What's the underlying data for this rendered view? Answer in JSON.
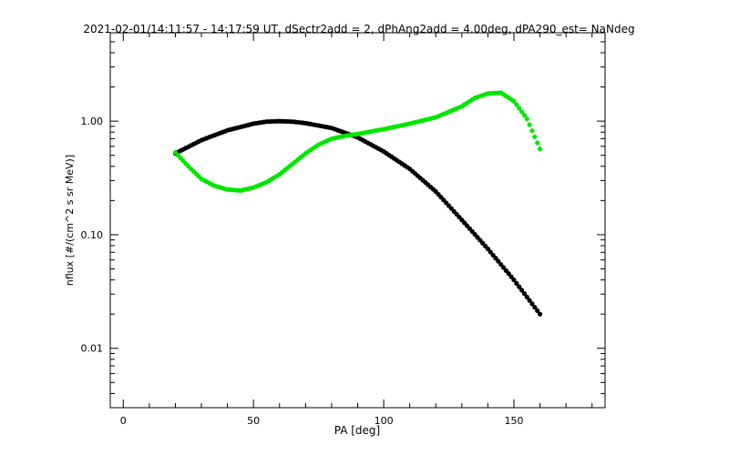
{
  "chart_data": {
    "type": "scatter",
    "title": "2021-02-01/14:11:57 - 14:17:59 UT, dSectr2add = 2, dPhAng2add = 4.00deg, dPA290_est=    NaNdeg",
    "xlabel": "PA [deg]",
    "ylabel": "nflux [#/(cm^2 s sr MeV)]",
    "xlim": [
      -5,
      185
    ],
    "ylim": [
      0.003,
      6.0
    ],
    "yscale": "log",
    "x_ticks": [
      0,
      50,
      100,
      150
    ],
    "x_tick_labels": [
      "0",
      "50",
      "100",
      "150"
    ],
    "y_ticks": [
      0.01,
      0.1,
      1.0
    ],
    "y_tick_labels": [
      "0.01",
      "0.10",
      "1.00"
    ],
    "grid": false,
    "legend": "none",
    "series": [
      {
        "color": "#000000",
        "x": [
          20,
          30,
          40,
          50,
          55,
          60,
          65,
          70,
          80,
          90,
          100,
          110,
          120,
          130,
          140,
          150,
          160
        ],
        "y": [
          0.52,
          0.68,
          0.83,
          0.95,
          0.99,
          1.0,
          0.99,
          0.96,
          0.87,
          0.72,
          0.54,
          0.38,
          0.24,
          0.135,
          0.075,
          0.04,
          0.02
        ]
      },
      {
        "color": "#00e600",
        "x": [
          20,
          25,
          30,
          35,
          40,
          45,
          50,
          55,
          60,
          65,
          70,
          75,
          80,
          85,
          90,
          100,
          110,
          120,
          130,
          135,
          140,
          145,
          150,
          155,
          160
        ],
        "y": [
          0.53,
          0.4,
          0.31,
          0.27,
          0.25,
          0.245,
          0.26,
          0.29,
          0.34,
          0.42,
          0.52,
          0.62,
          0.7,
          0.74,
          0.77,
          0.85,
          0.95,
          1.08,
          1.35,
          1.6,
          1.75,
          1.78,
          1.5,
          1.05,
          0.57
        ]
      }
    ]
  }
}
